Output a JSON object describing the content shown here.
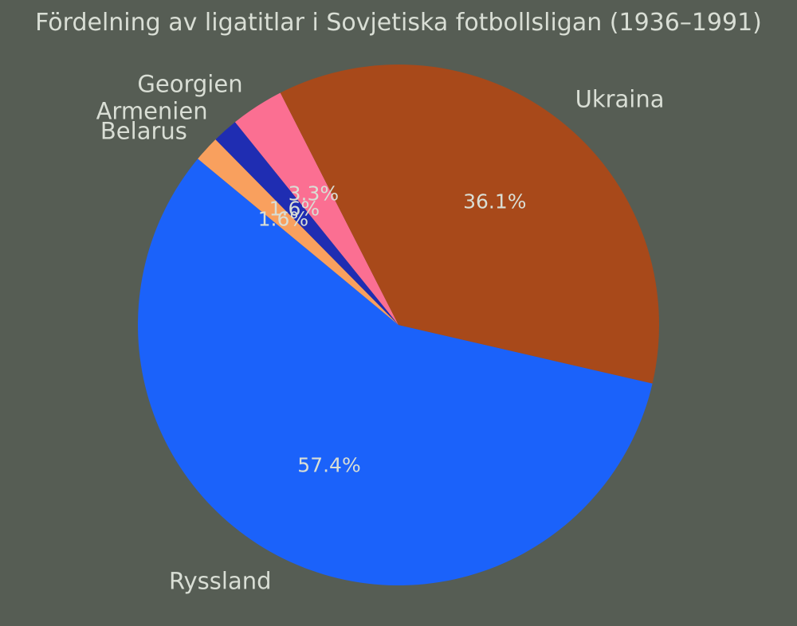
{
  "title": "Fördelning av ligatitlar i Sovjetiska fotbollsligan (1936–1991)",
  "colors": {
    "background": "#565d54",
    "text": "#d9ded5"
  },
  "chart_data": {
    "type": "pie",
    "title": "Fördelning av ligatitlar i Sovjetiska fotbollsligan (1936–1991)",
    "legend": "none",
    "direction": "clockwise",
    "start_css_angle_deg": 103,
    "label_position": "outside",
    "pct_position": "inside",
    "slices": [
      {
        "label": "Ryssland",
        "value_pct": 57.4,
        "pct_label": "57.4%",
        "color": "#1b62fa"
      },
      {
        "label": "Belarus",
        "value_pct": 1.6,
        "pct_label": "1.6%",
        "color": "#f9a05e"
      },
      {
        "label": "Armenien",
        "value_pct": 1.6,
        "pct_label": "1.6%",
        "color": "#1f2db2"
      },
      {
        "label": "Georgien",
        "value_pct": 3.3,
        "pct_label": "3.3%",
        "color": "#fb6f92"
      },
      {
        "label": "Ukraina",
        "value_pct": 36.1,
        "pct_label": "36.1%",
        "color": "#a8491a"
      }
    ]
  }
}
